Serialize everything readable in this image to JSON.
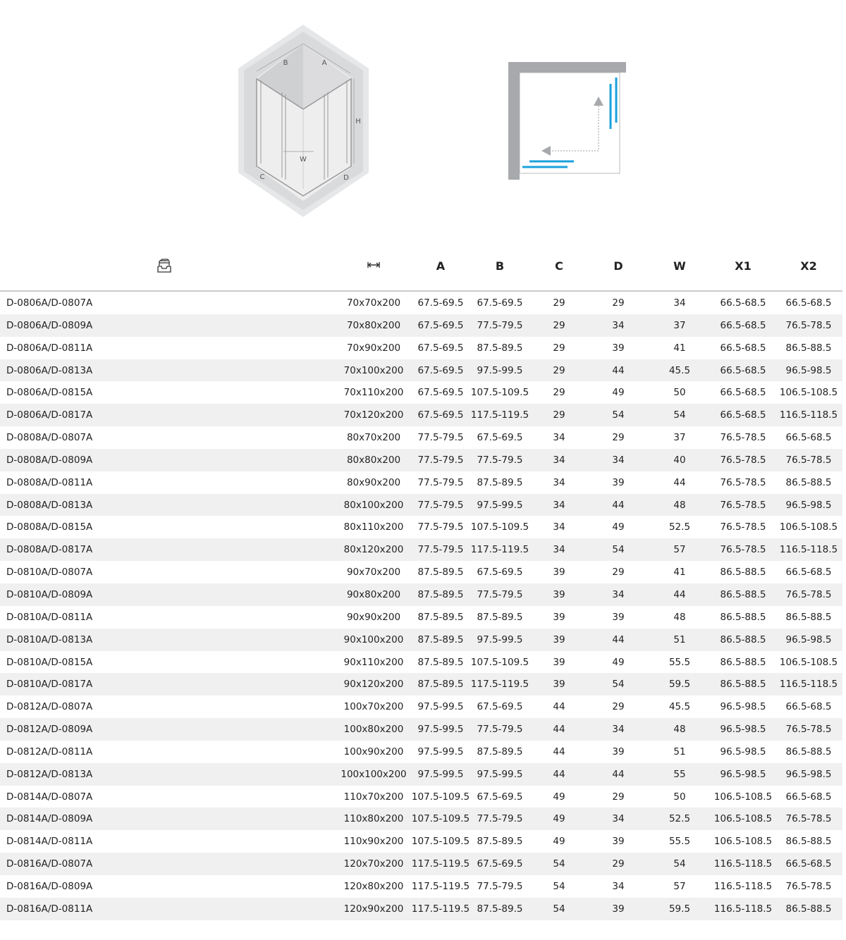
{
  "diagram_labels": {
    "a": "A",
    "b": "B",
    "c": "C",
    "d": "D",
    "w": "W",
    "h": "H"
  },
  "colors": {
    "glass_lines": "#1aa1dc",
    "wall": "#a7a9ac",
    "arrow": "#a7a9ac"
  },
  "header": {
    "model_icon": "tray-stack-icon",
    "size_icon": "width-arrows-icon",
    "columns": [
      "A",
      "B",
      "C",
      "D",
      "W",
      "X1",
      "X2"
    ]
  },
  "rows": [
    [
      "D-0806A/D-0807A",
      "70x70x200",
      "67.5-69.5",
      "67.5-69.5",
      "29",
      "29",
      "34",
      "66.5-68.5",
      "66.5-68.5"
    ],
    [
      "D-0806A/D-0809A",
      "70x80x200",
      "67.5-69.5",
      "77.5-79.5",
      "29",
      "34",
      "37",
      "66.5-68.5",
      "76.5-78.5"
    ],
    [
      "D-0806A/D-0811A",
      "70x90x200",
      "67.5-69.5",
      "87.5-89.5",
      "29",
      "39",
      "41",
      "66.5-68.5",
      "86.5-88.5"
    ],
    [
      "D-0806A/D-0813A",
      "70x100x200",
      "67.5-69.5",
      "97.5-99.5",
      "29",
      "44",
      "45.5",
      "66.5-68.5",
      "96.5-98.5"
    ],
    [
      "D-0806A/D-0815A",
      "70x110x200",
      "67.5-69.5",
      "107.5-109.5",
      "29",
      "49",
      "50",
      "66.5-68.5",
      "106.5-108.5"
    ],
    [
      "D-0806A/D-0817A",
      "70x120x200",
      "67.5-69.5",
      "117.5-119.5",
      "29",
      "54",
      "54",
      "66.5-68.5",
      "116.5-118.5"
    ],
    [
      "D-0808A/D-0807A",
      "80x70x200",
      "77.5-79.5",
      "67.5-69.5",
      "34",
      "29",
      "37",
      "76.5-78.5",
      "66.5-68.5"
    ],
    [
      "D-0808A/D-0809A",
      "80x80x200",
      "77.5-79.5",
      "77.5-79.5",
      "34",
      "34",
      "40",
      "76.5-78.5",
      "76.5-78.5"
    ],
    [
      "D-0808A/D-0811A",
      "80x90x200",
      "77.5-79.5",
      "87.5-89.5",
      "34",
      "39",
      "44",
      "76.5-78.5",
      "86.5-88.5"
    ],
    [
      "D-0808A/D-0813A",
      "80x100x200",
      "77.5-79.5",
      "97.5-99.5",
      "34",
      "44",
      "48",
      "76.5-78.5",
      "96.5-98.5"
    ],
    [
      "D-0808A/D-0815A",
      "80x110x200",
      "77.5-79.5",
      "107.5-109.5",
      "34",
      "49",
      "52.5",
      "76.5-78.5",
      "106.5-108.5"
    ],
    [
      "D-0808A/D-0817A",
      "80x120x200",
      "77.5-79.5",
      "117.5-119.5",
      "34",
      "54",
      "57",
      "76.5-78.5",
      "116.5-118.5"
    ],
    [
      "D-0810A/D-0807A",
      "90x70x200",
      "87.5-89.5",
      "67.5-69.5",
      "39",
      "29",
      "41",
      "86.5-88.5",
      "66.5-68.5"
    ],
    [
      "D-0810A/D-0809A",
      "90x80x200",
      "87.5-89.5",
      "77.5-79.5",
      "39",
      "34",
      "44",
      "86.5-88.5",
      "76.5-78.5"
    ],
    [
      "D-0810A/D-0811A",
      "90x90x200",
      "87.5-89.5",
      "87.5-89.5",
      "39",
      "39",
      "48",
      "86.5-88.5",
      "86.5-88.5"
    ],
    [
      "D-0810A/D-0813A",
      "90x100x200",
      "87.5-89.5",
      "97.5-99.5",
      "39",
      "44",
      "51",
      "86.5-88.5",
      "96.5-98.5"
    ],
    [
      "D-0810A/D-0815A",
      "90x110x200",
      "87.5-89.5",
      "107.5-109.5",
      "39",
      "49",
      "55.5",
      "86.5-88.5",
      "106.5-108.5"
    ],
    [
      "D-0810A/D-0817A",
      "90x120x200",
      "87.5-89.5",
      "117.5-119.5",
      "39",
      "54",
      "59.5",
      "86.5-88.5",
      "116.5-118.5"
    ],
    [
      "D-0812A/D-0807A",
      "100x70x200",
      "97.5-99.5",
      "67.5-69.5",
      "44",
      "29",
      "45.5",
      "96.5-98.5",
      "66.5-68.5"
    ],
    [
      "D-0812A/D-0809A",
      "100x80x200",
      "97.5-99.5",
      "77.5-79.5",
      "44",
      "34",
      "48",
      "96.5-98.5",
      "76.5-78.5"
    ],
    [
      "D-0812A/D-0811A",
      "100x90x200",
      "97.5-99.5",
      "87.5-89.5",
      "44",
      "39",
      "51",
      "96.5-98.5",
      "86.5-88.5"
    ],
    [
      "D-0812A/D-0813A",
      "100x100x200",
      "97.5-99.5",
      "97.5-99.5",
      "44",
      "44",
      "55",
      "96.5-98.5",
      "96.5-98.5"
    ],
    [
      "D-0814A/D-0807A",
      "110x70x200",
      "107.5-109.5",
      "67.5-69.5",
      "49",
      "29",
      "50",
      "106.5-108.5",
      "66.5-68.5"
    ],
    [
      "D-0814A/D-0809A",
      "110x80x200",
      "107.5-109.5",
      "77.5-79.5",
      "49",
      "34",
      "52.5",
      "106.5-108.5",
      "76.5-78.5"
    ],
    [
      "D-0814A/D-0811A",
      "110x90x200",
      "107.5-109.5",
      "87.5-89.5",
      "49",
      "39",
      "55.5",
      "106.5-108.5",
      "86.5-88.5"
    ],
    [
      "D-0816A/D-0807A",
      "120x70x200",
      "117.5-119.5",
      "67.5-69.5",
      "54",
      "29",
      "54",
      "116.5-118.5",
      "66.5-68.5"
    ],
    [
      "D-0816A/D-0809A",
      "120x80x200",
      "117.5-119.5",
      "77.5-79.5",
      "54",
      "34",
      "57",
      "116.5-118.5",
      "76.5-78.5"
    ],
    [
      "D-0816A/D-0811A",
      "120x90x200",
      "117.5-119.5",
      "87.5-89.5",
      "54",
      "39",
      "59.5",
      "116.5-118.5",
      "86.5-88.5"
    ]
  ]
}
